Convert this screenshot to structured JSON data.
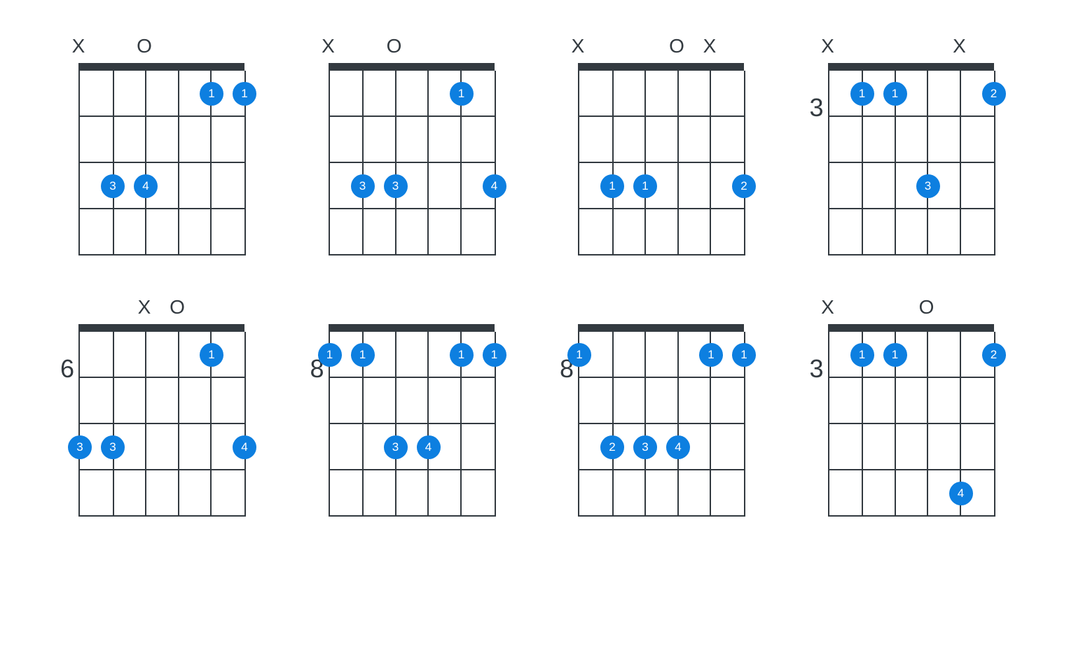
{
  "layout": {
    "columns": 4,
    "rows": 2,
    "string_spacing": 47,
    "fret_height": 66,
    "num_frets": 4,
    "num_strings": 6,
    "dot_radius": 17,
    "dot_fontsize": 17,
    "dot_color": "#0d7fe0",
    "line_color": "#333a40",
    "nut_color": "#333a40",
    "text_color": "#333a40",
    "bg_color": "#ffffff"
  },
  "chords": [
    {
      "start_fret": null,
      "starting_fret_num": 1,
      "show_nut": true,
      "top": [
        {
          "string": 1,
          "mark": "X"
        },
        {
          "string": 3,
          "mark": "O"
        }
      ],
      "dots": [
        {
          "string": 5,
          "fret": 1,
          "finger": "1"
        },
        {
          "string": 6,
          "fret": 1,
          "finger": "1"
        },
        {
          "string": 2,
          "fret": 3,
          "finger": "3"
        },
        {
          "string": 3,
          "fret": 3,
          "finger": "4"
        }
      ]
    },
    {
      "start_fret": null,
      "starting_fret_num": 1,
      "show_nut": true,
      "top": [
        {
          "string": 1,
          "mark": "X"
        },
        {
          "string": 3,
          "mark": "O"
        }
      ],
      "dots": [
        {
          "string": 5,
          "fret": 1,
          "finger": "1"
        },
        {
          "string": 2,
          "fret": 3,
          "finger": "3"
        },
        {
          "string": 3,
          "fret": 3,
          "finger": "3"
        },
        {
          "string": 6,
          "fret": 3,
          "finger": "4"
        }
      ]
    },
    {
      "start_fret": null,
      "starting_fret_num": 1,
      "show_nut": true,
      "top": [
        {
          "string": 1,
          "mark": "X"
        },
        {
          "string": 4,
          "mark": "O"
        },
        {
          "string": 5,
          "mark": "X"
        }
      ],
      "dots": [
        {
          "string": 2,
          "fret": 3,
          "finger": "1"
        },
        {
          "string": 3,
          "fret": 3,
          "finger": "1"
        },
        {
          "string": 6,
          "fret": 3,
          "finger": "2"
        }
      ]
    },
    {
      "start_fret": "3",
      "starting_fret_num": 3,
      "show_nut": true,
      "top": [
        {
          "string": 1,
          "mark": "X"
        },
        {
          "string": 5,
          "mark": "X"
        }
      ],
      "dots": [
        {
          "string": 2,
          "fret": 1,
          "finger": "1"
        },
        {
          "string": 3,
          "fret": 1,
          "finger": "1"
        },
        {
          "string": 6,
          "fret": 1,
          "finger": "2"
        },
        {
          "string": 4,
          "fret": 3,
          "finger": "3"
        }
      ]
    },
    {
      "start_fret": "6",
      "starting_fret_num": 6,
      "show_nut": true,
      "top": [
        {
          "string": 3,
          "mark": "X"
        },
        {
          "string": 4,
          "mark": "O"
        }
      ],
      "dots": [
        {
          "string": 5,
          "fret": 1,
          "finger": "1"
        },
        {
          "string": 1,
          "fret": 3,
          "finger": "3"
        },
        {
          "string": 2,
          "fret": 3,
          "finger": "3"
        },
        {
          "string": 6,
          "fret": 3,
          "finger": "4"
        }
      ]
    },
    {
      "start_fret": "8",
      "starting_fret_num": 8,
      "show_nut": true,
      "top": [],
      "dots": [
        {
          "string": 1,
          "fret": 1,
          "finger": "1"
        },
        {
          "string": 2,
          "fret": 1,
          "finger": "1"
        },
        {
          "string": 5,
          "fret": 1,
          "finger": "1"
        },
        {
          "string": 6,
          "fret": 1,
          "finger": "1"
        },
        {
          "string": 3,
          "fret": 3,
          "finger": "3"
        },
        {
          "string": 4,
          "fret": 3,
          "finger": "4"
        }
      ]
    },
    {
      "start_fret": "8",
      "starting_fret_num": 8,
      "show_nut": true,
      "top": [],
      "dots": [
        {
          "string": 1,
          "fret": 1,
          "finger": "1"
        },
        {
          "string": 5,
          "fret": 1,
          "finger": "1"
        },
        {
          "string": 6,
          "fret": 1,
          "finger": "1"
        },
        {
          "string": 2,
          "fret": 3,
          "finger": "2"
        },
        {
          "string": 3,
          "fret": 3,
          "finger": "3"
        },
        {
          "string": 4,
          "fret": 3,
          "finger": "4"
        }
      ]
    },
    {
      "start_fret": "3",
      "starting_fret_num": 3,
      "show_nut": true,
      "top": [
        {
          "string": 1,
          "mark": "X"
        },
        {
          "string": 4,
          "mark": "O"
        }
      ],
      "dots": [
        {
          "string": 2,
          "fret": 1,
          "finger": "1"
        },
        {
          "string": 3,
          "fret": 1,
          "finger": "1"
        },
        {
          "string": 6,
          "fret": 1,
          "finger": "2"
        },
        {
          "string": 5,
          "fret": 4,
          "finger": "4"
        }
      ]
    }
  ]
}
